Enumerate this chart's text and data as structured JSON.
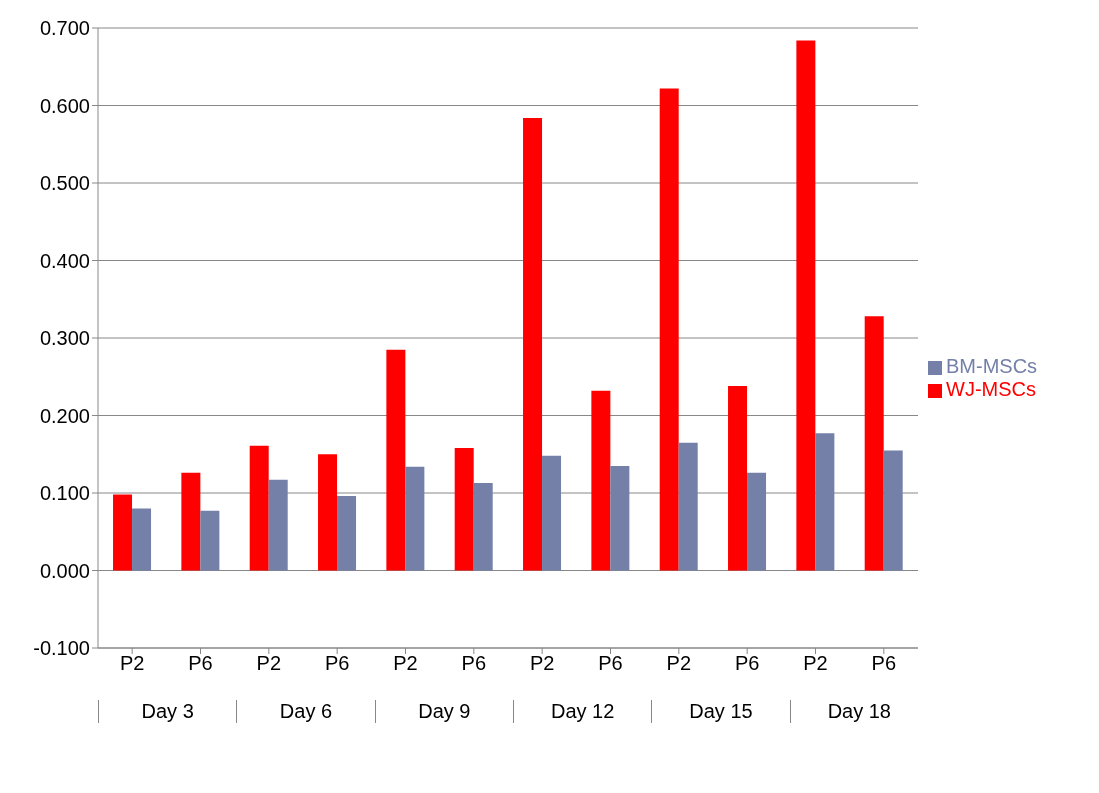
{
  "chart_data": {
    "type": "bar",
    "categories": [
      "P2",
      "P6",
      "P2",
      "P6",
      "P2",
      "P6",
      "P2",
      "P6",
      "P2",
      "P6",
      "P2",
      "P6"
    ],
    "annotations": [
      "Day 3",
      "Day 6",
      "Day 9",
      "Day 12",
      "Day 15",
      "Day 18"
    ],
    "series": [
      {
        "name": "WJ-MSCs",
        "color": "#ff0000",
        "values": [
          0.098,
          0.126,
          0.161,
          0.15,
          0.285,
          0.158,
          0.584,
          0.232,
          0.622,
          0.238,
          0.684,
          0.328
        ]
      },
      {
        "name": "BM-MSCs",
        "color": "#7480a8",
        "values": [
          0.08,
          0.077,
          0.117,
          0.096,
          0.134,
          0.113,
          0.148,
          0.135,
          0.165,
          0.126,
          0.177,
          0.155
        ]
      }
    ],
    "ylim": [
      -0.1,
      0.7
    ],
    "yticks": [
      {
        "value": -0.1,
        "label": "-0.100"
      },
      {
        "value": 0,
        "label": "0.000"
      },
      {
        "value": 0.1,
        "label": "0.100"
      },
      {
        "value": 0.2,
        "label": "0.200"
      },
      {
        "value": 0.3,
        "label": "0.300"
      },
      {
        "value": 0.4,
        "label": "0.400"
      },
      {
        "value": 0.5,
        "label": "0.500"
      },
      {
        "value": 0.6,
        "label": "0.600"
      },
      {
        "value": 0.7,
        "label": "0.700"
      }
    ],
    "grid": "y",
    "legend": "right"
  }
}
